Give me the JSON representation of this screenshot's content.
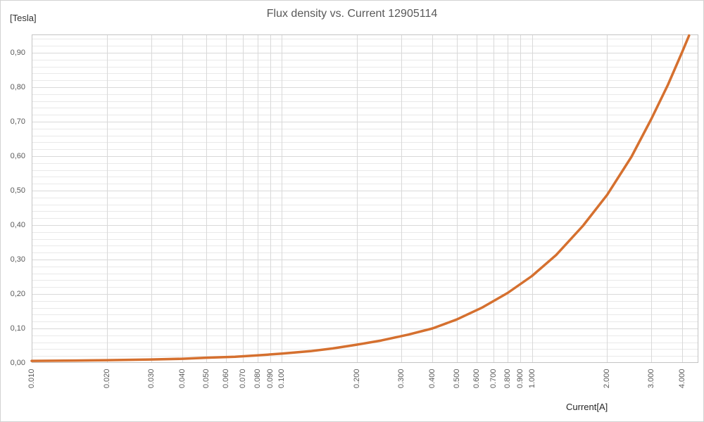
{
  "chart_data": {
    "type": "line",
    "title": "Flux density vs. Current 12905114",
    "y_unit_label": "[Tesla]",
    "x_axis_title": "Current[A]",
    "x_axis": {
      "scale": "log",
      "range": [
        0.01,
        4.63
      ],
      "tick_values": [
        0.01,
        0.02,
        0.03,
        0.04,
        0.05,
        0.06,
        0.07,
        0.08,
        0.09,
        0.1,
        0.2,
        0.3,
        0.4,
        0.5,
        0.6,
        0.7,
        0.8,
        0.9,
        1,
        2,
        3,
        4
      ],
      "tick_labels": [
        "0.010",
        "0.020",
        "0.030",
        "0.040",
        "0.050",
        "0.060",
        "0.070",
        "0.080",
        "0.090",
        "0.100",
        "0.200",
        "0.300",
        "0.400",
        "0.500",
        "0.600",
        "0.700",
        "0.800",
        "0.900",
        "1.000",
        "2.000",
        "3.000",
        "4.000"
      ]
    },
    "y_axis": {
      "scale": "linear",
      "range": [
        0,
        0.953
      ],
      "major_step": 0.1,
      "minor_step": 0.02,
      "tick_values": [
        0,
        0.1,
        0.2,
        0.3,
        0.4,
        0.5,
        0.6,
        0.7,
        0.8,
        0.9
      ],
      "tick_labels": [
        "0,00",
        "0,10",
        "0,20",
        "0,30",
        "0,40",
        "0,50",
        "0,60",
        "0,70",
        "0,80",
        "0,90"
      ]
    },
    "grid": {
      "major_color": "#d9d9d9",
      "minor_color": "#e9e9e9",
      "border_color": "#c4c4c4"
    },
    "series": [
      {
        "color": "#d5702f",
        "points": [
          [
            0.01,
            0.006
          ],
          [
            0.015,
            0.007
          ],
          [
            0.02,
            0.008
          ],
          [
            0.03,
            0.01
          ],
          [
            0.04,
            0.012
          ],
          [
            0.05,
            0.015
          ],
          [
            0.065,
            0.018
          ],
          [
            0.08,
            0.022
          ],
          [
            0.1,
            0.027
          ],
          [
            0.13,
            0.034
          ],
          [
            0.16,
            0.042
          ],
          [
            0.2,
            0.053
          ],
          [
            0.25,
            0.065
          ],
          [
            0.32,
            0.082
          ],
          [
            0.4,
            0.1
          ],
          [
            0.5,
            0.126
          ],
          [
            0.63,
            0.16
          ],
          [
            0.8,
            0.203
          ],
          [
            1.0,
            0.252
          ],
          [
            1.25,
            0.313
          ],
          [
            1.6,
            0.398
          ],
          [
            2.0,
            0.488
          ],
          [
            2.5,
            0.598
          ],
          [
            3.0,
            0.707
          ],
          [
            3.5,
            0.807
          ],
          [
            4.0,
            0.904
          ],
          [
            4.25,
            0.95
          ]
        ]
      }
    ]
  }
}
